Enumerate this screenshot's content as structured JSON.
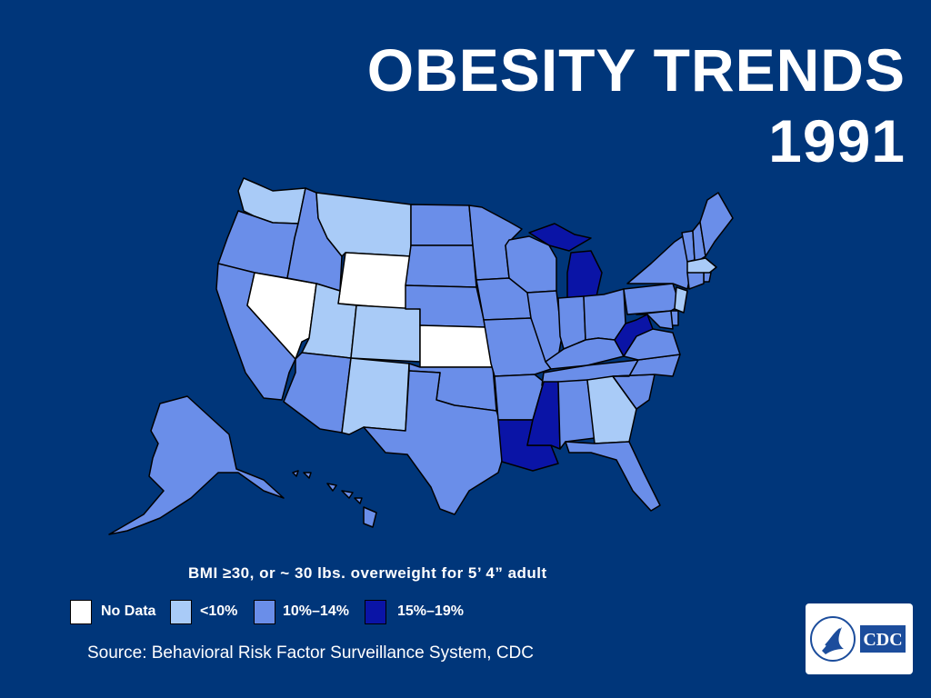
{
  "title": {
    "line1": "OBESITY TRENDS",
    "line2": "1991"
  },
  "subtitle": "BMI ≥30, or ~ 30 lbs. overweight for 5’ 4” adult",
  "legend": [
    {
      "label": "No Data",
      "color": "#ffffff"
    },
    {
      "label": "<10%",
      "color": "#a9cbf7"
    },
    {
      "label": "10%–14%",
      "color": "#6a8ee9"
    },
    {
      "label": "15%–19%",
      "color": "#0a14a6"
    }
  ],
  "source": "Source: Behavioral Risk Factor Surveillance System, CDC",
  "logo": {
    "text": "CDC",
    "icon": "hhs-eagle-icon"
  },
  "map_data": {
    "states": {
      "WA": "<10%",
      "OR": "10%–14%",
      "CA": "10%–14%",
      "NV": "No Data",
      "ID": "10%–14%",
      "MT": "<10%",
      "WY": "No Data",
      "UT": "<10%",
      "CO": "<10%",
      "AZ": "10%–14%",
      "NM": "<10%",
      "ND": "10%–14%",
      "SD": "10%–14%",
      "NE": "10%–14%",
      "KS": "No Data",
      "OK": "10%–14%",
      "TX": "10%–14%",
      "MN": "10%–14%",
      "IA": "10%–14%",
      "MO": "10%–14%",
      "AR": "10%–14%",
      "LA": "15%–19%",
      "WI": "10%–14%",
      "IL": "10%–14%",
      "MI": "15%–19%",
      "IN": "10%–14%",
      "OH": "10%–14%",
      "KY": "10%–14%",
      "TN": "10%–14%",
      "MS": "15%–19%",
      "AL": "10%–14%",
      "GA": "<10%",
      "FL": "10%–14%",
      "SC": "10%–14%",
      "NC": "10%–14%",
      "VA": "10%–14%",
      "WV": "15%–19%",
      "PA": "10%–14%",
      "NY": "10%–14%",
      "VT": "10%–14%",
      "NH": "10%–14%",
      "ME": "10%–14%",
      "MA": "<10%",
      "RI": "10%–14%",
      "CT": "10%–14%",
      "NJ": "<10%",
      "DE": "10%–14%",
      "MD": "10%–14%",
      "AK": "10%–14%",
      "HI": "10%–14%"
    }
  }
}
